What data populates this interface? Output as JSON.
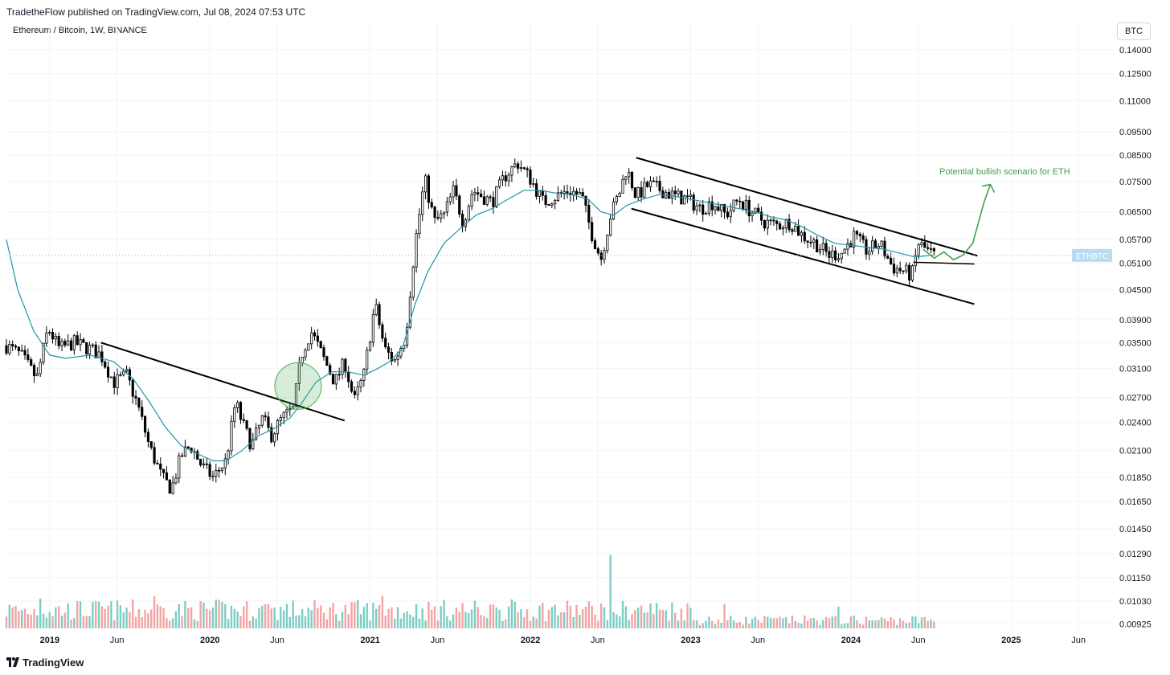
{
  "header": {
    "published": "TradetheFlow published on TradingView.com, Jul 08, 2024 07:53 UTC",
    "symbol": "Ethereum / Bitcoin, 1W, BINANCE",
    "currency_button": "BTC",
    "footer_brand": "TradingView"
  },
  "colors": {
    "up": "#ffffff",
    "down": "#000000",
    "candle_border": "#000000",
    "ma": "#2196a8",
    "vol_up": "#7ccdc3",
    "vol_down": "#f3a3a3",
    "annotation": "#43a047",
    "price_line": "#7fb8d8",
    "price_tag_bg": "#b9dcf2"
  },
  "chart_data": {
    "type": "candlestick",
    "interval": "1W",
    "price_scale": "log",
    "y_ticks": [
      "0.14000",
      "0.12500",
      "0.11000",
      "0.09500",
      "0.08500",
      "0.07500",
      "0.06500",
      "0.05700",
      "0.05100",
      "0.04500",
      "0.03900",
      "0.03500",
      "0.03100",
      "0.02700",
      "0.02400",
      "0.02100",
      "0.01850",
      "0.01650",
      "0.01450",
      "0.01290",
      "0.01150",
      "0.01030",
      "0.00925"
    ],
    "x_ticks": [
      {
        "label": "2019",
        "year": true,
        "t": 2019.0
      },
      {
        "label": "Jun",
        "year": false,
        "t": 2019.42
      },
      {
        "label": "2020",
        "year": true,
        "t": 2020.0
      },
      {
        "label": "Jun",
        "year": false,
        "t": 2020.42
      },
      {
        "label": "2021",
        "year": true,
        "t": 2021.0
      },
      {
        "label": "Jun",
        "year": false,
        "t": 2021.42
      },
      {
        "label": "2022",
        "year": true,
        "t": 2022.0
      },
      {
        "label": "Jun",
        "year": false,
        "t": 2022.42
      },
      {
        "label": "2023",
        "year": true,
        "t": 2023.0
      },
      {
        "label": "Jun",
        "year": false,
        "t": 2023.42
      },
      {
        "label": "2024",
        "year": true,
        "t": 2024.0
      },
      {
        "label": "Jun",
        "year": false,
        "t": 2024.42
      },
      {
        "label": "2025",
        "year": true,
        "t": 2025.0
      },
      {
        "label": "Jun",
        "year": false,
        "t": 2025.42
      }
    ],
    "x_range": [
      2018.73,
      2025.64
    ],
    "y_range": [
      0.00905,
      0.1465
    ],
    "current_price_tag": "ETHBTC",
    "current_price": 0.0529,
    "close_path": [
      [
        2018.73,
        0.0345
      ],
      [
        2018.82,
        0.033
      ],
      [
        2018.92,
        0.0295
      ],
      [
        2018.99,
        0.0375
      ],
      [
        2019.06,
        0.034
      ],
      [
        2019.15,
        0.035
      ],
      [
        2019.25,
        0.034
      ],
      [
        2019.32,
        0.033
      ],
      [
        2019.4,
        0.029
      ],
      [
        2019.48,
        0.03
      ],
      [
        2019.55,
        0.026
      ],
      [
        2019.62,
        0.0215
      ],
      [
        2019.7,
        0.0185
      ],
      [
        2019.76,
        0.0175
      ],
      [
        2019.82,
        0.0205
      ],
      [
        2019.88,
        0.0215
      ],
      [
        2019.95,
        0.0195
      ],
      [
        2020.02,
        0.0185
      ],
      [
        2020.1,
        0.02
      ],
      [
        2020.16,
        0.0265
      ],
      [
        2020.2,
        0.024
      ],
      [
        2020.26,
        0.0215
      ],
      [
        2020.33,
        0.0245
      ],
      [
        2020.38,
        0.0225
      ],
      [
        2020.45,
        0.0245
      ],
      [
        2020.52,
        0.0255
      ],
      [
        2020.57,
        0.033
      ],
      [
        2020.63,
        0.037
      ],
      [
        2020.7,
        0.033
      ],
      [
        2020.78,
        0.029
      ],
      [
        2020.84,
        0.032
      ],
      [
        2020.9,
        0.0265
      ],
      [
        2020.96,
        0.03
      ],
      [
        2021.03,
        0.042
      ],
      [
        2021.09,
        0.034
      ],
      [
        2021.15,
        0.032
      ],
      [
        2021.22,
        0.036
      ],
      [
        2021.28,
        0.056
      ],
      [
        2021.34,
        0.076
      ],
      [
        2021.4,
        0.062
      ],
      [
        2021.46,
        0.064
      ],
      [
        2021.52,
        0.072
      ],
      [
        2021.58,
        0.062
      ],
      [
        2021.64,
        0.072
      ],
      [
        2021.7,
        0.07
      ],
      [
        2021.76,
        0.068
      ],
      [
        2021.84,
        0.077
      ],
      [
        2021.92,
        0.082
      ],
      [
        2022.0,
        0.076
      ],
      [
        2022.08,
        0.068
      ],
      [
        2022.16,
        0.07
      ],
      [
        2022.24,
        0.072
      ],
      [
        2022.32,
        0.07
      ],
      [
        2022.38,
        0.059
      ],
      [
        2022.44,
        0.052
      ],
      [
        2022.5,
        0.064
      ],
      [
        2022.56,
        0.072
      ],
      [
        2022.6,
        0.08
      ],
      [
        2022.66,
        0.07
      ],
      [
        2022.74,
        0.074
      ],
      [
        2022.82,
        0.072
      ],
      [
        2022.9,
        0.07
      ],
      [
        2022.98,
        0.069
      ],
      [
        2023.06,
        0.066
      ],
      [
        2023.14,
        0.068
      ],
      [
        2023.22,
        0.064
      ],
      [
        2023.3,
        0.069
      ],
      [
        2023.38,
        0.065
      ],
      [
        2023.46,
        0.062
      ],
      [
        2023.54,
        0.061
      ],
      [
        2023.62,
        0.062
      ],
      [
        2023.7,
        0.058
      ],
      [
        2023.78,
        0.056
      ],
      [
        2023.86,
        0.053
      ],
      [
        2023.94,
        0.0535
      ],
      [
        2024.02,
        0.058
      ],
      [
        2024.1,
        0.054
      ],
      [
        2024.18,
        0.056
      ],
      [
        2024.26,
        0.05
      ],
      [
        2024.34,
        0.049
      ],
      [
        2024.38,
        0.048
      ],
      [
        2024.42,
        0.056
      ],
      [
        2024.48,
        0.054
      ],
      [
        2024.52,
        0.0529
      ]
    ],
    "ma_path": [
      [
        2018.73,
        0.057
      ],
      [
        2018.8,
        0.045
      ],
      [
        2018.9,
        0.037
      ],
      [
        2019.0,
        0.033
      ],
      [
        2019.1,
        0.0325
      ],
      [
        2019.25,
        0.033
      ],
      [
        2019.4,
        0.032
      ],
      [
        2019.52,
        0.0295
      ],
      [
        2019.62,
        0.0265
      ],
      [
        2019.72,
        0.0235
      ],
      [
        2019.82,
        0.0215
      ],
      [
        2019.92,
        0.0207
      ],
      [
        2020.02,
        0.02
      ],
      [
        2020.1,
        0.02
      ],
      [
        2020.2,
        0.021
      ],
      [
        2020.3,
        0.0225
      ],
      [
        2020.4,
        0.0233
      ],
      [
        2020.5,
        0.0245
      ],
      [
        2020.58,
        0.0265
      ],
      [
        2020.66,
        0.029
      ],
      [
        2020.76,
        0.0305
      ],
      [
        2020.86,
        0.0305
      ],
      [
        2020.96,
        0.03
      ],
      [
        2021.05,
        0.031
      ],
      [
        2021.12,
        0.032
      ],
      [
        2021.2,
        0.034
      ],
      [
        2021.28,
        0.042
      ],
      [
        2021.36,
        0.049
      ],
      [
        2021.46,
        0.056
      ],
      [
        2021.56,
        0.06
      ],
      [
        2021.66,
        0.064
      ],
      [
        2021.76,
        0.066
      ],
      [
        2021.86,
        0.069
      ],
      [
        2021.96,
        0.072
      ],
      [
        2022.06,
        0.072
      ],
      [
        2022.16,
        0.071
      ],
      [
        2022.26,
        0.0705
      ],
      [
        2022.36,
        0.069
      ],
      [
        2022.44,
        0.065
      ],
      [
        2022.52,
        0.064
      ],
      [
        2022.6,
        0.067
      ],
      [
        2022.7,
        0.069
      ],
      [
        2022.8,
        0.0705
      ],
      [
        2022.9,
        0.07
      ],
      [
        2023.0,
        0.069
      ],
      [
        2023.1,
        0.068
      ],
      [
        2023.2,
        0.067
      ],
      [
        2023.3,
        0.066
      ],
      [
        2023.4,
        0.065
      ],
      [
        2023.5,
        0.0635
      ],
      [
        2023.6,
        0.0625
      ],
      [
        2023.7,
        0.0605
      ],
      [
        2023.8,
        0.058
      ],
      [
        2023.9,
        0.056
      ],
      [
        2024.0,
        0.0555
      ],
      [
        2024.1,
        0.055
      ],
      [
        2024.2,
        0.0545
      ],
      [
        2024.3,
        0.0535
      ],
      [
        2024.4,
        0.0525
      ],
      [
        2024.52,
        0.053
      ]
    ],
    "annotations": {
      "downtrend_2019": {
        "from": [
          2019.32,
          0.035
        ],
        "to": [
          2020.84,
          0.0242
        ]
      },
      "channel_upper": {
        "from": [
          2022.66,
          0.084
        ],
        "to": [
          2024.79,
          0.0528
        ]
      },
      "channel_lower": {
        "from": [
          2022.63,
          0.066
        ],
        "to": [
          2024.77,
          0.042
        ]
      },
      "support_line": {
        "from": [
          2024.39,
          0.0512
        ],
        "to": [
          2024.77,
          0.0508
        ]
      },
      "breakout_circle": {
        "center": [
          2020.55,
          0.0285
        ],
        "label": ""
      },
      "bullish_text": "Potential bullish scenario for ETH",
      "bullish_path": [
        [
          2024.45,
          0.0545
        ],
        [
          2024.52,
          0.0522
        ],
        [
          2024.58,
          0.0538
        ],
        [
          2024.64,
          0.0518
        ],
        [
          2024.7,
          0.053
        ],
        [
          2024.76,
          0.056
        ],
        [
          2024.83,
          0.068
        ],
        [
          2024.87,
          0.074
        ]
      ]
    }
  }
}
